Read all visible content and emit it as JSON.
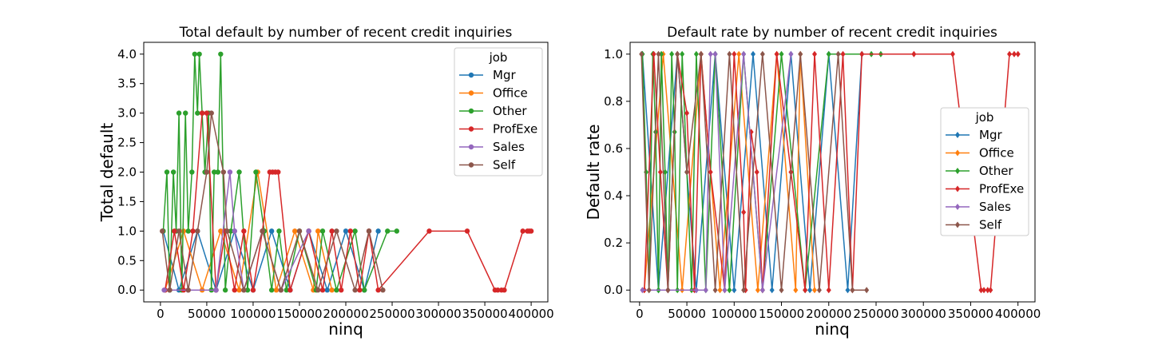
{
  "colors": {
    "Mgr": "#1f77b4",
    "Office": "#ff7f0e",
    "Other": "#2ca02c",
    "ProfExe": "#d62728",
    "Sales": "#9467bd",
    "Self": "#8c564b"
  },
  "chart_data": [
    {
      "type": "line",
      "title": "Total default by number of recent credit inquiries",
      "xlabel": "ninq",
      "ylabel": "Total default",
      "xlim": [
        -18000,
        418000
      ],
      "ylim": [
        -0.2,
        4.2
      ],
      "xticks": [
        0,
        50000,
        100000,
        150000,
        200000,
        250000,
        300000,
        350000,
        400000
      ],
      "xtick_labels": [
        "0",
        "50000",
        "100000",
        "150000",
        "200000",
        "250000",
        "300000",
        "350000",
        "400000"
      ],
      "yticks": [
        0,
        0.5,
        1,
        1.5,
        2,
        2.5,
        3,
        3.5,
        4
      ],
      "ytick_labels": [
        "0.0",
        "0.5",
        "1.0",
        "1.5",
        "2.0",
        "2.5",
        "3.0",
        "3.5",
        "4.0"
      ],
      "marker": "circle",
      "grid": false,
      "legend": {
        "title": "job",
        "placement": "top-right",
        "entries": [
          "Mgr",
          "Office",
          "Other",
          "ProfExe",
          "Sales",
          "Self"
        ]
      },
      "series": [
        {
          "name": "Mgr",
          "x": [
            3000,
            20000,
            40000,
            60000,
            80000,
            100000,
            120000,
            140000,
            160000,
            180000,
            200000,
            220000,
            235000
          ],
          "y": [
            1,
            0,
            1,
            0,
            1,
            0,
            1,
            0,
            1,
            0,
            1,
            0,
            1
          ]
        },
        {
          "name": "Office",
          "x": [
            5000,
            25000,
            45000,
            65000,
            85000,
            105000,
            125000,
            145000,
            165000,
            170000,
            185000
          ],
          "y": [
            0,
            1,
            0,
            1,
            0,
            2,
            0,
            1,
            0,
            1,
            0
          ]
        },
        {
          "name": "Other",
          "x": [
            3000,
            7000,
            10000,
            14000,
            17000,
            20000,
            23000,
            27000,
            30000,
            34000,
            37000,
            40000,
            42000,
            45000,
            48000,
            52000,
            55000,
            58000,
            62000,
            65000,
            70000,
            76000,
            85000,
            94000,
            103000,
            112000,
            120000,
            128000,
            136000,
            150000,
            168000,
            175000,
            190000,
            210000,
            220000,
            245000,
            255000
          ],
          "y": [
            1,
            2,
            0,
            2,
            1,
            3,
            0,
            3,
            1,
            2,
            4,
            3,
            4,
            3,
            2,
            3,
            0,
            2,
            2,
            4,
            0,
            1,
            2,
            0,
            2,
            1,
            0,
            1,
            0,
            1,
            0,
            1,
            0,
            1,
            0,
            1,
            1
          ]
        },
        {
          "name": "ProfExe",
          "x": [
            5000,
            15000,
            25000,
            35000,
            45000,
            50000,
            60000,
            70000,
            80000,
            90000,
            100000,
            110000,
            118000,
            121000,
            124000,
            127000,
            140000,
            160000,
            175000,
            185000,
            195000,
            205000,
            215000,
            225000,
            235000,
            290000,
            331000,
            361000,
            364000,
            368000,
            371000,
            391000,
            396000,
            398000,
            400000
          ],
          "y": [
            0,
            1,
            0,
            1,
            3,
            3,
            0,
            1,
            0,
            1,
            0,
            1,
            2,
            2,
            2,
            2,
            0,
            1,
            0,
            1,
            0,
            1,
            0,
            1,
            0,
            1,
            1,
            0,
            0,
            0,
            0,
            1,
            1,
            1,
            1
          ]
        },
        {
          "name": "Sales",
          "x": [
            4000,
            30000,
            60000,
            75000,
            80000,
            90000,
            110000,
            130000,
            160000
          ],
          "y": [
            0,
            0,
            0,
            2,
            1,
            0,
            1,
            0,
            1
          ]
        },
        {
          "name": "Self",
          "x": [
            2000,
            10000,
            20000,
            30000,
            40000,
            50000,
            55000,
            68000,
            72000,
            90000,
            110000,
            130000,
            150000,
            170000,
            190000,
            210000,
            225000,
            240000
          ],
          "y": [
            1,
            0,
            1,
            0,
            1,
            2,
            3,
            2,
            1,
            0,
            1,
            0,
            1,
            0,
            1,
            0,
            1,
            0
          ]
        }
      ]
    },
    {
      "type": "line",
      "title": "Default rate by number of recent credit inquiries",
      "xlabel": "ninq",
      "ylabel": "Default rate",
      "xlim": [
        -10000,
        418000
      ],
      "ylim": [
        -0.05,
        1.05
      ],
      "xticks": [
        0,
        50000,
        100000,
        150000,
        200000,
        250000,
        300000,
        350000,
        400000
      ],
      "xtick_labels": [
        "0",
        "50000",
        "100000",
        "150000",
        "200000",
        "250000",
        "300000",
        "350000",
        "400000"
      ],
      "yticks": [
        0,
        0.2,
        0.4,
        0.6,
        0.8,
        1.0
      ],
      "ytick_labels": [
        "0.0",
        "0.2",
        "0.4",
        "0.6",
        "0.8",
        "1.0"
      ],
      "marker": "diamond",
      "grid": false,
      "legend": {
        "title": "job",
        "placement": "center-right",
        "entries": [
          "Mgr",
          "Office",
          "Other",
          "ProfExe",
          "Sales",
          "Self"
        ]
      },
      "series": [
        {
          "name": "Mgr",
          "x": [
            3000,
            20000,
            40000,
            60000,
            80000,
            100000,
            120000,
            140000,
            160000,
            180000,
            200000,
            220000,
            235000
          ],
          "y": [
            1,
            0,
            1,
            0,
            1,
            0,
            1,
            0,
            1,
            0,
            1,
            0,
            1
          ]
        },
        {
          "name": "Office",
          "x": [
            5000,
            25000,
            45000,
            65000,
            85000,
            105000,
            125000,
            145000,
            165000,
            170000,
            185000
          ],
          "y": [
            0,
            1,
            0,
            1,
            0,
            1,
            0,
            1,
            0,
            1,
            0
          ]
        },
        {
          "name": "Other",
          "x": [
            3000,
            7000,
            10000,
            14000,
            17000,
            20000,
            23000,
            27000,
            30000,
            34000,
            37000,
            40000,
            45000,
            50000,
            55000,
            60000,
            70000,
            80000,
            95000,
            110000,
            130000,
            150000,
            175000,
            200000,
            245000,
            255000
          ],
          "y": [
            1,
            0.5,
            0,
            1,
            0.67,
            0,
            1,
            0.5,
            0,
            1,
            0.67,
            0,
            1,
            0.5,
            0,
            1,
            0,
            1,
            0,
            1,
            0,
            1,
            0,
            1,
            1,
            1
          ]
        },
        {
          "name": "ProfExe",
          "x": [
            5000,
            15000,
            22000,
            30000,
            40000,
            50000,
            58000,
            65000,
            75000,
            90000,
            100000,
            110000,
            112000,
            118000,
            124000,
            130000,
            145000,
            160000,
            175000,
            185000,
            200000,
            215000,
            225000,
            235000,
            290000,
            331000,
            361000,
            364000,
            368000,
            371000,
            391000,
            396000,
            400000
          ],
          "y": [
            0,
            1,
            0.5,
            0,
            1,
            0.75,
            0,
            1,
            0.5,
            0,
            1,
            0.33,
            0,
            0.67,
            0.5,
            0,
            1,
            0.5,
            0,
            1,
            0,
            1,
            0,
            1,
            1,
            1,
            0,
            0,
            0,
            0,
            1,
            1,
            1
          ]
        },
        {
          "name": "Sales",
          "x": [
            3000,
            30000,
            60000,
            70000,
            75000,
            80000,
            90000,
            110000,
            130000,
            160000
          ],
          "y": [
            0,
            0,
            0,
            0,
            1,
            1,
            0,
            1,
            0,
            1
          ]
        },
        {
          "name": "Self",
          "x": [
            2000,
            10000,
            20000,
            30000,
            40000,
            50000,
            65000,
            80000,
            95000,
            110000,
            130000,
            150000,
            170000,
            190000,
            210000,
            225000,
            240000
          ],
          "y": [
            1,
            0,
            1,
            0,
            1,
            0.5,
            1,
            0,
            1,
            0,
            1,
            0,
            1,
            0,
            1,
            0,
            0
          ]
        }
      ]
    }
  ]
}
